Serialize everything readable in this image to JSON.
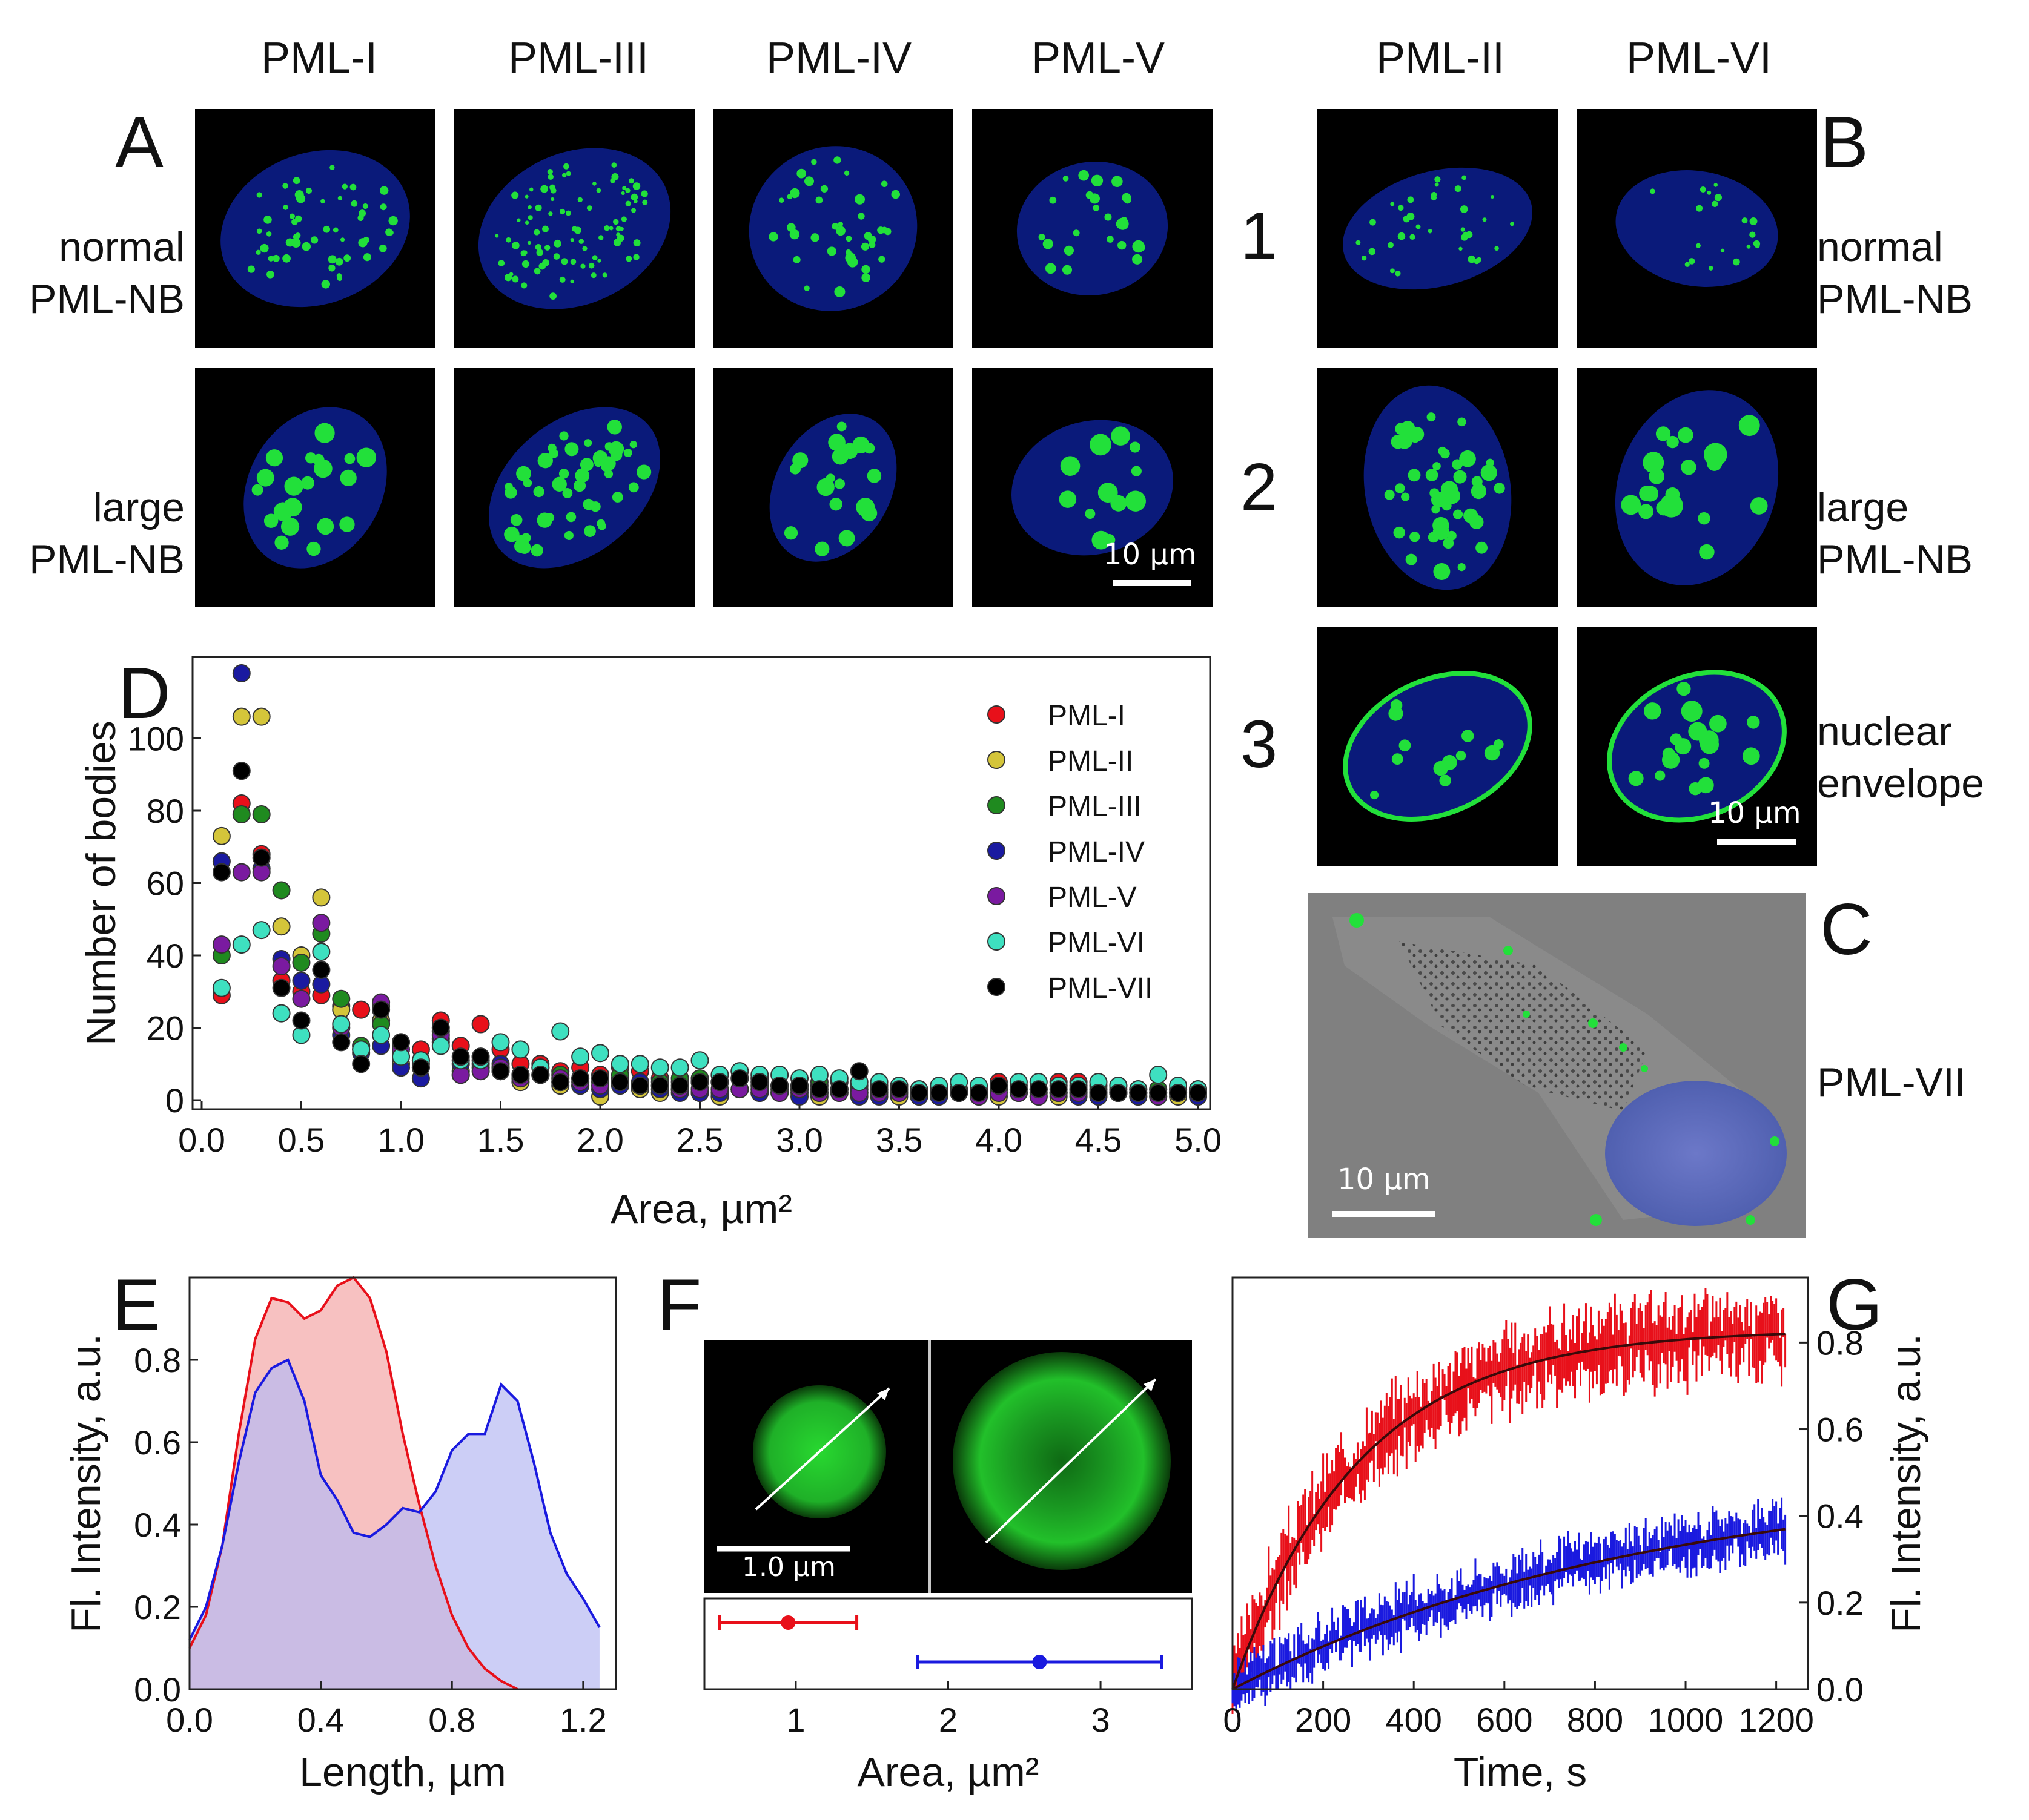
{
  "columns_A": [
    "PML-I",
    "PML-III",
    "PML-IV",
    "PML-V"
  ],
  "columns_B": [
    "PML-II",
    "PML-VI"
  ],
  "panel_letters": {
    "A": "A",
    "B": "B",
    "C": "C",
    "D": "D",
    "E": "E",
    "F": "F",
    "G": "G"
  },
  "row_labels_A": {
    "normal_l1": "normal",
    "normal_l2": "PML-NB",
    "large_l1": "large",
    "large_l2": "PML-NB"
  },
  "row_labels_B": {
    "normal_l1": "normal",
    "normal_l2": "PML-NB",
    "large_l1": "large",
    "large_l2": "PML-NB",
    "env_l1": "nuclear",
    "env_l2": "envelope"
  },
  "row_numbers": [
    "1",
    "2",
    "3"
  ],
  "panel_C_label": "PML-VII",
  "scale_bars": {
    "A": "10 µm",
    "B": "10 µm",
    "C": "10 µm",
    "F": "1.0 µm"
  },
  "colors": {
    "nucleus_blue": "#0a1a7a",
    "body_green": "#22e03a",
    "red": "#e8101a",
    "blue": "#1a1adf",
    "fit": "#3a0a0a"
  },
  "chart_data": [
    {
      "panel": "D",
      "type": "scatter",
      "xlabel": "Area, µm²",
      "ylabel": "Number of bodies",
      "xlim": [
        0,
        5
      ],
      "ylim": [
        0,
        120
      ],
      "xticks": [
        "0.0",
        "0.5",
        "1.0",
        "1.5",
        "2.0",
        "2.5",
        "3.0",
        "3.5",
        "4.0",
        "4.5",
        "5.0"
      ],
      "yticks": [
        "0",
        "20",
        "40",
        "60",
        "80",
        "100"
      ],
      "legend_position": "top-right",
      "x": [
        0.1,
        0.2,
        0.3,
        0.4,
        0.5,
        0.6,
        0.7,
        0.8,
        0.9,
        1.0,
        1.1,
        1.2,
        1.3,
        1.4,
        1.5,
        1.6,
        1.7,
        1.8,
        1.9,
        2.0,
        2.1,
        2.2,
        2.3,
        2.4,
        2.5,
        2.6,
        2.7,
        2.8,
        2.9,
        3.0,
        3.1,
        3.2,
        3.3,
        3.4,
        3.5,
        3.6,
        3.7,
        3.8,
        3.9,
        4.0,
        4.1,
        4.2,
        4.3,
        4.4,
        4.5,
        4.6,
        4.7,
        4.8,
        4.9,
        5.0
      ],
      "series": [
        {
          "name": "PML-I",
          "color": "#e8101a",
          "values": [
            29,
            82,
            68,
            33,
            30,
            29,
            26,
            25,
            26,
            16,
            14,
            22,
            15,
            21,
            14,
            10,
            10,
            8,
            9,
            7,
            9,
            8,
            6,
            5,
            5,
            5,
            6,
            4,
            4,
            3,
            4,
            3,
            3,
            4,
            4,
            3,
            2,
            2,
            3,
            5,
            4,
            3,
            5,
            5,
            4,
            4,
            3,
            3,
            3,
            2
          ]
        },
        {
          "name": "PML-II",
          "color": "#d4c53a",
          "values": [
            73,
            106,
            106,
            48,
            40,
            56,
            25,
            15,
            22,
            10,
            9,
            16,
            8,
            12,
            8,
            5,
            7,
            4,
            4,
            1,
            6,
            3,
            2,
            3,
            2,
            1,
            3,
            2,
            3,
            2,
            1,
            3,
            2,
            2,
            1,
            1,
            1,
            2,
            1,
            1,
            2,
            1,
            1,
            2,
            1,
            2,
            1,
            1,
            1,
            1
          ]
        },
        {
          "name": "PML-III",
          "color": "#1f8a1f",
          "values": [
            40,
            79,
            79,
            58,
            38,
            46,
            28,
            15,
            21,
            12,
            10,
            19,
            7,
            10,
            9,
            7,
            9,
            7,
            6,
            5,
            7,
            4,
            5,
            6,
            6,
            5,
            8,
            6,
            4,
            4,
            5,
            5,
            4,
            3,
            3,
            2,
            3,
            3,
            2,
            3,
            3,
            3,
            2,
            3,
            3,
            3,
            2,
            3,
            3,
            3
          ]
        },
        {
          "name": "PML-IV",
          "color": "#1a1aa0",
          "values": [
            66,
            118,
            64,
            39,
            33,
            32,
            18,
            13,
            15,
            9,
            6,
            17,
            10,
            9,
            10,
            7,
            7,
            5,
            4,
            3,
            4,
            5,
            3,
            2,
            2,
            2,
            3,
            2,
            2,
            1,
            2,
            2,
            1,
            1,
            2,
            1,
            1,
            2,
            2,
            3,
            2,
            2,
            2,
            1,
            1,
            2,
            1,
            2,
            2,
            1
          ]
        },
        {
          "name": "PML-V",
          "color": "#7a1aa0",
          "values": [
            43,
            63,
            63,
            37,
            28,
            49,
            20,
            14,
            27,
            14,
            11,
            18,
            7,
            8,
            9,
            6,
            7,
            6,
            5,
            4,
            5,
            4,
            4,
            3,
            3,
            3,
            3,
            3,
            2,
            3,
            2,
            2,
            2,
            2,
            2,
            2,
            2,
            2,
            1,
            2,
            2,
            1,
            2,
            2,
            2,
            2,
            2,
            1,
            2,
            2
          ]
        },
        {
          "name": "PML-VI",
          "color": "#3ee0c0",
          "values": [
            31,
            43,
            47,
            24,
            18,
            41,
            21,
            14,
            18,
            12,
            11,
            15,
            11,
            11,
            16,
            14,
            9,
            19,
            12,
            13,
            10,
            10,
            9,
            9,
            11,
            7,
            8,
            7,
            7,
            6,
            7,
            6,
            5,
            5,
            4,
            3,
            4,
            5,
            4,
            4,
            5,
            5,
            4,
            4,
            5,
            4,
            3,
            7,
            4,
            3
          ]
        },
        {
          "name": "PML-VII",
          "color": "#000000",
          "values": [
            63,
            91,
            67,
            31,
            22,
            36,
            16,
            10,
            25,
            16,
            9,
            20,
            12,
            12,
            8,
            7,
            7,
            5,
            6,
            6,
            5,
            4,
            4,
            4,
            5,
            5,
            6,
            5,
            4,
            4,
            3,
            3,
            8,
            3,
            3,
            2,
            2,
            2,
            2,
            4,
            3,
            3,
            3,
            3,
            2,
            2,
            2,
            2,
            2,
            2
          ]
        }
      ]
    },
    {
      "panel": "E",
      "type": "area",
      "xlabel": "Length, µm",
      "ylabel": "Fl. Intensity, a.u.",
      "xlim": [
        0,
        1.3
      ],
      "ylim": [
        0,
        1.0
      ],
      "xticks": [
        "0.0",
        "0.4",
        "0.8",
        "1.2"
      ],
      "yticks": [
        "0.0",
        "0.2",
        "0.4",
        "0.6",
        "0.8"
      ],
      "series": [
        {
          "color": "#e8101a",
          "fill": "#f6b6b6",
          "x": [
            0,
            0.05,
            0.1,
            0.15,
            0.2,
            0.25,
            0.3,
            0.35,
            0.4,
            0.45,
            0.5,
            0.55,
            0.6,
            0.65,
            0.7,
            0.75,
            0.8,
            0.85,
            0.9,
            0.95,
            1.0
          ],
          "values": [
            0.1,
            0.18,
            0.35,
            0.62,
            0.85,
            0.95,
            0.94,
            0.9,
            0.92,
            0.98,
            1.0,
            0.95,
            0.82,
            0.62,
            0.45,
            0.3,
            0.18,
            0.1,
            0.05,
            0.02,
            0.0
          ]
        },
        {
          "color": "#1a1adf",
          "fill": "#b7b9f2",
          "x": [
            0,
            0.05,
            0.1,
            0.15,
            0.2,
            0.25,
            0.3,
            0.35,
            0.4,
            0.45,
            0.5,
            0.55,
            0.6,
            0.65,
            0.7,
            0.75,
            0.8,
            0.85,
            0.9,
            0.95,
            1.0,
            1.05,
            1.1,
            1.15,
            1.2,
            1.25
          ],
          "values": [
            0.12,
            0.2,
            0.35,
            0.55,
            0.72,
            0.78,
            0.8,
            0.7,
            0.52,
            0.46,
            0.38,
            0.37,
            0.4,
            0.44,
            0.43,
            0.48,
            0.58,
            0.62,
            0.62,
            0.74,
            0.7,
            0.55,
            0.38,
            0.28,
            0.22,
            0.15
          ]
        }
      ]
    },
    {
      "panel": "F",
      "type": "scatter",
      "xlabel": "Area, µm²",
      "xlim": [
        0.4,
        3.6
      ],
      "xticks": [
        "1",
        "2",
        "3"
      ],
      "series": [
        {
          "color": "#e8101a",
          "value": 0.95,
          "err_low": 0.5,
          "err_high": 1.4
        },
        {
          "color": "#1a1adf",
          "value": 2.6,
          "err_low": 1.8,
          "err_high": 3.4
        }
      ]
    },
    {
      "panel": "G",
      "type": "line",
      "xlabel": "Time, s",
      "ylabel": "Fl. Intensity, a.u.",
      "xlim": [
        0,
        1270
      ],
      "ylim": [
        0,
        0.95
      ],
      "xticks": [
        "0",
        "200",
        "400",
        "600",
        "800",
        "1000",
        "1200"
      ],
      "yticks": [
        "0.0",
        "0.2",
        "0.4",
        "0.6",
        "0.8"
      ],
      "series": [
        {
          "color": "#e8101a",
          "plateau": 0.83,
          "rate": 0.0036,
          "err": 0.06
        },
        {
          "color": "#1a1adf",
          "plateau": 0.5,
          "rate": 0.0011,
          "err": 0.04
        }
      ]
    }
  ]
}
